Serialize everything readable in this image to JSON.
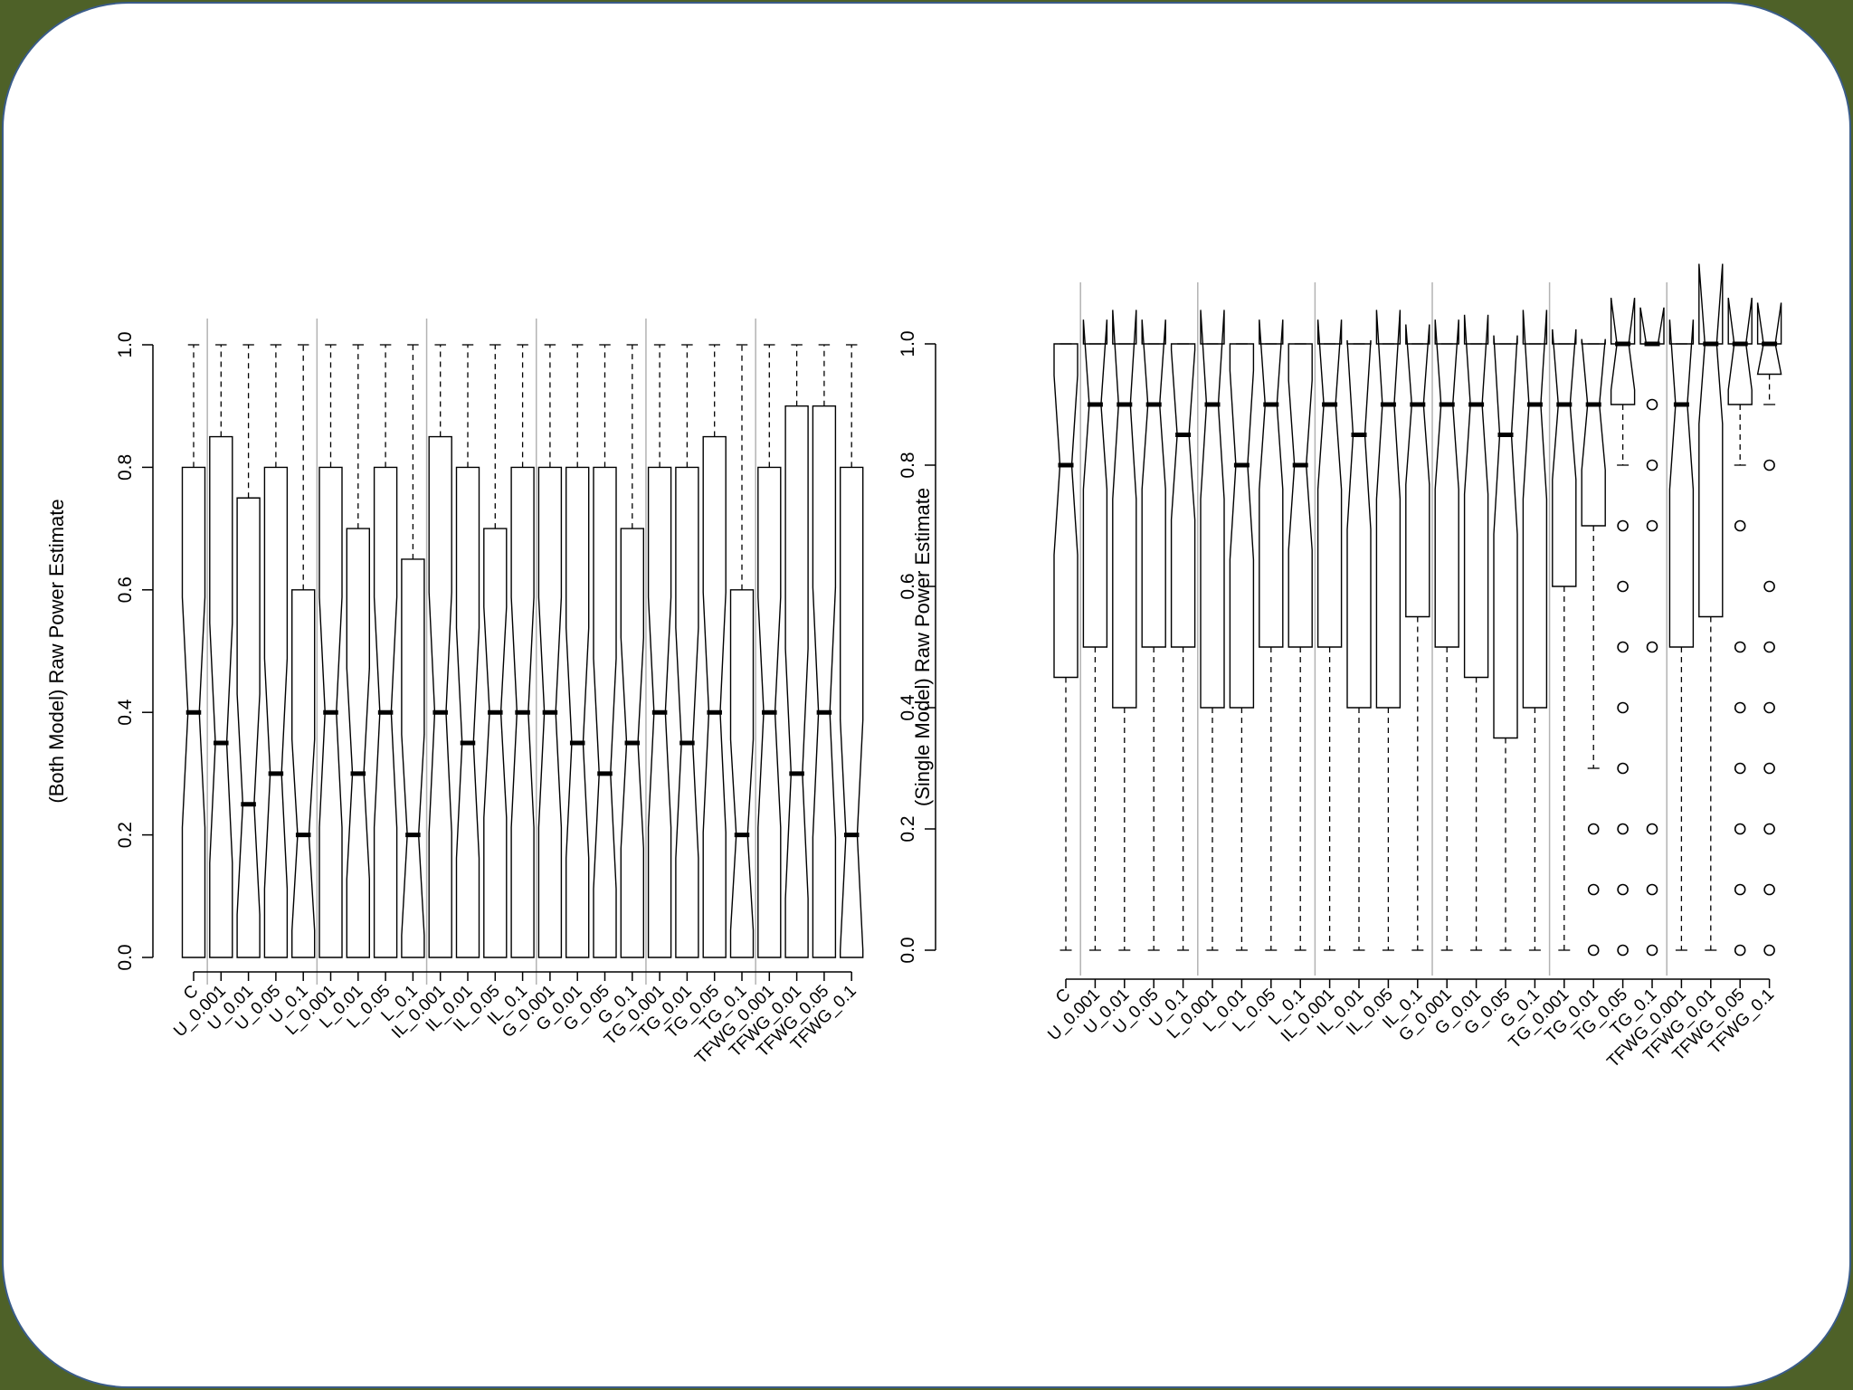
{
  "chart_data": [
    {
      "type": "boxplot",
      "notched": true,
      "ylabel": "(Both Model) Raw Power Estimate",
      "ylim": [
        0,
        1
      ],
      "yticks": [
        "0.0",
        "0.2",
        "0.4",
        "0.6",
        "0.8",
        "1.0"
      ],
      "categories": [
        "C",
        "U_0.001",
        "U_0.01",
        "U_0.05",
        "U_0.1",
        "L_0.001",
        "L_0.01",
        "L_0.05",
        "L_0.1",
        "IL_0.001",
        "IL_0.01",
        "IL_0.05",
        "IL_0.1",
        "G_0.001",
        "G_0.01",
        "G_0.05",
        "G_0.1",
        "TG_0.001",
        "TG_0.01",
        "TG_0.05",
        "TG_0.1",
        "TFWG_0.001",
        "TFWG_0.01",
        "TFWG_0.05",
        "TFWG_0.1"
      ],
      "group_separators_after": [
        1,
        5,
        9,
        13,
        17,
        21
      ],
      "boxes": [
        {
          "min": 0,
          "q1": 0,
          "median": 0.4,
          "q3": 0.8,
          "max": 1.0
        },
        {
          "min": 0,
          "q1": 0,
          "median": 0.35,
          "q3": 0.85,
          "max": 1.0
        },
        {
          "min": 0,
          "q1": 0,
          "median": 0.25,
          "q3": 0.75,
          "max": 1.0
        },
        {
          "min": 0,
          "q1": 0,
          "median": 0.3,
          "q3": 0.8,
          "max": 1.0
        },
        {
          "min": 0,
          "q1": 0,
          "median": 0.2,
          "q3": 0.6,
          "max": 1.0
        },
        {
          "min": 0,
          "q1": 0,
          "median": 0.4,
          "q3": 0.8,
          "max": 1.0
        },
        {
          "min": 0,
          "q1": 0,
          "median": 0.3,
          "q3": 0.7,
          "max": 1.0
        },
        {
          "min": 0,
          "q1": 0,
          "median": 0.4,
          "q3": 0.8,
          "max": 1.0
        },
        {
          "min": 0,
          "q1": 0,
          "median": 0.2,
          "q3": 0.65,
          "max": 1.0
        },
        {
          "min": 0,
          "q1": 0,
          "median": 0.4,
          "q3": 0.85,
          "max": 1.0
        },
        {
          "min": 0,
          "q1": 0,
          "median": 0.35,
          "q3": 0.8,
          "max": 1.0
        },
        {
          "min": 0,
          "q1": 0,
          "median": 0.4,
          "q3": 0.7,
          "max": 1.0
        },
        {
          "min": 0,
          "q1": 0,
          "median": 0.4,
          "q3": 0.8,
          "max": 1.0
        },
        {
          "min": 0,
          "q1": 0,
          "median": 0.4,
          "q3": 0.8,
          "max": 1.0
        },
        {
          "min": 0,
          "q1": 0,
          "median": 0.35,
          "q3": 0.8,
          "max": 1.0
        },
        {
          "min": 0,
          "q1": 0,
          "median": 0.3,
          "q3": 0.8,
          "max": 1.0
        },
        {
          "min": 0,
          "q1": 0,
          "median": 0.35,
          "q3": 0.7,
          "max": 1.0
        },
        {
          "min": 0,
          "q1": 0,
          "median": 0.4,
          "q3": 0.8,
          "max": 1.0
        },
        {
          "min": 0,
          "q1": 0,
          "median": 0.35,
          "q3": 0.8,
          "max": 1.0
        },
        {
          "min": 0,
          "q1": 0,
          "median": 0.4,
          "q3": 0.85,
          "max": 1.0
        },
        {
          "min": 0,
          "q1": 0,
          "median": 0.2,
          "q3": 0.6,
          "max": 1.0
        },
        {
          "min": 0,
          "q1": 0,
          "median": 0.4,
          "q3": 0.8,
          "max": 1.0
        },
        {
          "min": 0,
          "q1": 0,
          "median": 0.3,
          "q3": 0.9,
          "max": 1.0
        },
        {
          "min": 0,
          "q1": 0,
          "median": 0.4,
          "q3": 0.9,
          "max": 1.0
        },
        {
          "min": 0,
          "q1": 0,
          "median": 0.2,
          "q3": 0.8,
          "max": 1.0
        }
      ]
    },
    {
      "type": "boxplot",
      "notched": true,
      "ylabel": "(Single Model) Raw Power Estimate",
      "ylim": [
        0,
        1
      ],
      "yticks": [
        "0.0",
        "0.2",
        "0.4",
        "0.6",
        "0.8",
        "1.0"
      ],
      "categories": [
        "C",
        "U_0.001",
        "U_0.01",
        "U_0.05",
        "U_0.1",
        "L_0.001",
        "L_0.01",
        "L_0.05",
        "L_0.1",
        "IL_0.001",
        "IL_0.01",
        "IL_0.05",
        "IL_0.1",
        "G_0.001",
        "G_0.01",
        "G_0.05",
        "G_0.1",
        "TG_0.001",
        "TG_0.01",
        "TG_0.05",
        "TG_0.1",
        "TFWG_0.001",
        "TFWG_0.01",
        "TFWG_0.05",
        "TFWG_0.1"
      ],
      "group_separators_after": [
        1,
        5,
        9,
        13,
        17,
        21
      ],
      "boxes": [
        {
          "min": 0,
          "q1": 0.45,
          "median": 0.8,
          "q3": 1.0,
          "max": 1.0
        },
        {
          "min": 0,
          "q1": 0.5,
          "median": 0.9,
          "q3": 1.0,
          "max": 1.0
        },
        {
          "min": 0,
          "q1": 0.4,
          "median": 0.9,
          "q3": 1.0,
          "max": 1.0
        },
        {
          "min": 0,
          "q1": 0.5,
          "median": 0.9,
          "q3": 1.0,
          "max": 1.0
        },
        {
          "min": 0,
          "q1": 0.5,
          "median": 0.85,
          "q3": 1.0,
          "max": 1.0
        },
        {
          "min": 0,
          "q1": 0.4,
          "median": 0.9,
          "q3": 1.0,
          "max": 1.0
        },
        {
          "min": 0,
          "q1": 0.4,
          "median": 0.8,
          "q3": 1.0,
          "max": 1.0
        },
        {
          "min": 0,
          "q1": 0.5,
          "median": 0.9,
          "q3": 1.0,
          "max": 1.0
        },
        {
          "min": 0,
          "q1": 0.5,
          "median": 0.8,
          "q3": 1.0,
          "max": 1.0
        },
        {
          "min": 0,
          "q1": 0.5,
          "median": 0.9,
          "q3": 1.0,
          "max": 1.0
        },
        {
          "min": 0,
          "q1": 0.4,
          "median": 0.85,
          "q3": 1.0,
          "max": 1.0
        },
        {
          "min": 0,
          "q1": 0.4,
          "median": 0.9,
          "q3": 1.0,
          "max": 1.0
        },
        {
          "min": 0,
          "q1": 0.55,
          "median": 0.9,
          "q3": 1.0,
          "max": 1.0
        },
        {
          "min": 0,
          "q1": 0.5,
          "median": 0.9,
          "q3": 1.0,
          "max": 1.0
        },
        {
          "min": 0,
          "q1": 0.45,
          "median": 0.9,
          "q3": 1.0,
          "max": 1.0
        },
        {
          "min": 0,
          "q1": 0.35,
          "median": 0.85,
          "q3": 1.0,
          "max": 1.0
        },
        {
          "min": 0,
          "q1": 0.4,
          "median": 0.9,
          "q3": 1.0,
          "max": 1.0
        },
        {
          "min": 0,
          "q1": 0.6,
          "median": 0.9,
          "q3": 1.0,
          "max": 1.0
        },
        {
          "min": 0.3,
          "q1": 0.7,
          "median": 0.9,
          "q3": 1.0,
          "max": 1.0,
          "outliers": [
            0.2,
            0.1,
            0.0
          ]
        },
        {
          "min": 0.8,
          "q1": 0.9,
          "median": 1.0,
          "q3": 1.0,
          "max": 1.0,
          "outliers": [
            0.7,
            0.6,
            0.5,
            0.4,
            0.3,
            0.2,
            0.1,
            0.0
          ]
        },
        {
          "min": 1.0,
          "q1": 1.0,
          "median": 1.0,
          "q3": 1.0,
          "max": 1.0,
          "outliers": [
            0.9,
            0.8,
            0.7,
            0.5,
            0.2,
            0.1,
            0.0
          ]
        },
        {
          "min": 0,
          "q1": 0.5,
          "median": 0.9,
          "q3": 1.0,
          "max": 1.0
        },
        {
          "min": 0,
          "q1": 0.55,
          "median": 1.0,
          "q3": 1.0,
          "max": 1.0
        },
        {
          "min": 0.8,
          "q1": 0.9,
          "median": 1.0,
          "q3": 1.0,
          "max": 1.0,
          "outliers": [
            0.7,
            0.5,
            0.4,
            0.3,
            0.2,
            0.1,
            0.0
          ]
        },
        {
          "min": 0.9,
          "q1": 0.95,
          "median": 1.0,
          "q3": 1.0,
          "max": 1.0,
          "outliers": [
            0.8,
            0.6,
            0.5,
            0.4,
            0.3,
            0.2,
            0.1,
            0.0
          ]
        }
      ]
    }
  ]
}
